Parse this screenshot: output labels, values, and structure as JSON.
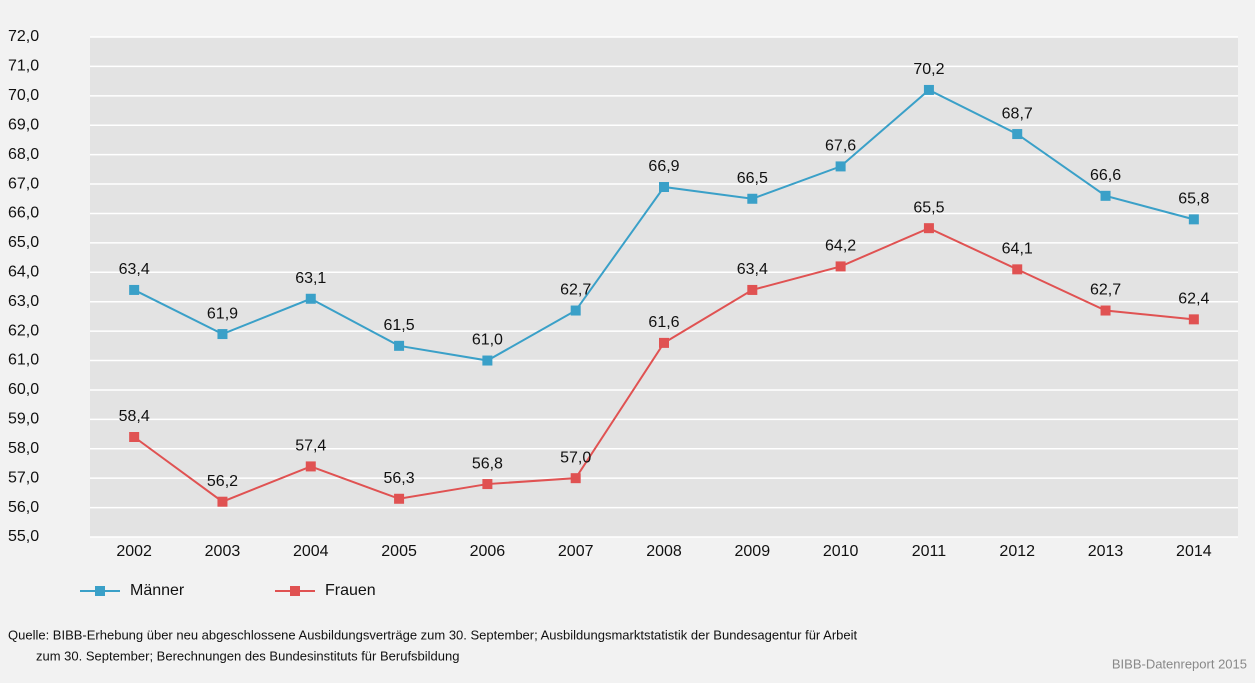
{
  "chart_data": {
    "type": "line",
    "categories": [
      "2002",
      "2003",
      "2004",
      "2005",
      "2006",
      "2007",
      "2008",
      "2009",
      "2010",
      "2011",
      "2012",
      "2013",
      "2014"
    ],
    "series": [
      {
        "name": "Männer",
        "color": "#3aa0c8",
        "values": [
          63.4,
          61.9,
          63.1,
          61.5,
          61.0,
          62.7,
          66.9,
          66.5,
          67.6,
          70.2,
          68.7,
          66.6,
          65.8
        ],
        "value_labels": [
          "63,4",
          "61,9",
          "63,1",
          "61,5",
          "61,0",
          "62,7",
          "66,9",
          "66,5",
          "67,6",
          "70,2",
          "68,7",
          "66,6",
          "65,8"
        ]
      },
      {
        "name": "Frauen",
        "color": "#e05252",
        "values": [
          58.4,
          56.2,
          57.4,
          56.3,
          56.8,
          57.0,
          61.6,
          63.4,
          64.2,
          65.5,
          64.1,
          62.7,
          62.4
        ],
        "value_labels": [
          "58,4",
          "56,2",
          "57,4",
          "56,3",
          "56,8",
          "57,0",
          "61,6",
          "63,4",
          "64,2",
          "65,5",
          "64,1",
          "62,7",
          "62,4"
        ]
      }
    ],
    "ylim": [
      55,
      72
    ],
    "yticks": [
      {
        "value": 55,
        "label": "55,0"
      },
      {
        "value": 56,
        "label": "56,0"
      },
      {
        "value": 57,
        "label": "57,0"
      },
      {
        "value": 58,
        "label": "58,0"
      },
      {
        "value": 59,
        "label": "59,0"
      },
      {
        "value": 60,
        "label": "60,0"
      },
      {
        "value": 61,
        "label": "61,0"
      },
      {
        "value": 62,
        "label": "62,0"
      },
      {
        "value": 63,
        "label": "63,0"
      },
      {
        "value": 64,
        "label": "64,0"
      },
      {
        "value": 65,
        "label": "65,0"
      },
      {
        "value": 66,
        "label": "66,0"
      },
      {
        "value": 67,
        "label": "67,0"
      },
      {
        "value": 68,
        "label": "68,0"
      },
      {
        "value": 69,
        "label": "69,0"
      },
      {
        "value": 70,
        "label": "70,0"
      },
      {
        "value": 71,
        "label": "71,0"
      },
      {
        "value": 72,
        "label": "72,0"
      }
    ],
    "grid": true,
    "legend": "bottom-left",
    "source": [
      "Quelle: BIBB-Erhebung über neu abgeschlossene Ausbildungsverträge zum 30. September; Ausbildungsmarktstatistik der Bundesagentur für Arbeit",
      "zum 30. September; Berechnungen des Bundesinstituts für Berufsbildung"
    ],
    "credit": "BIBB-Datenreport 2015"
  }
}
